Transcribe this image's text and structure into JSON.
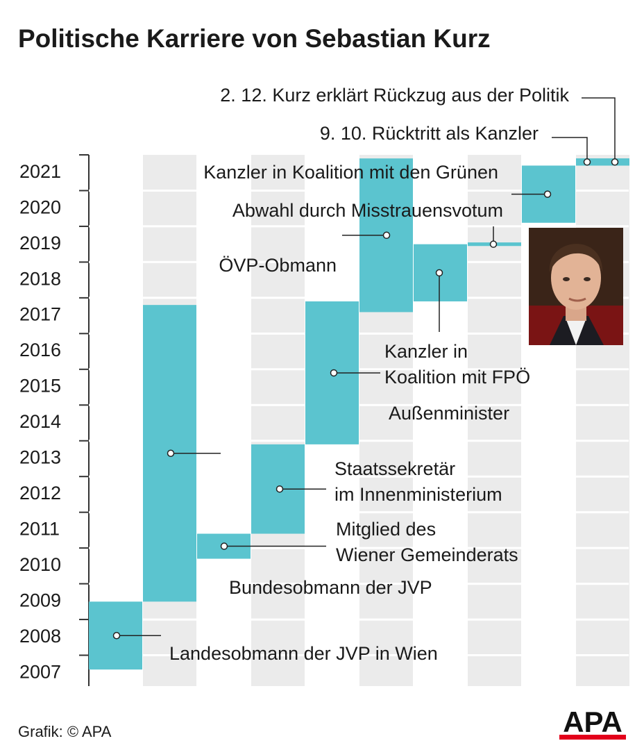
{
  "chart_data": {
    "type": "timeline",
    "title": "Politische Karriere von Sebastian Kurz",
    "source": "Grafik: © APA",
    "logo": "APA",
    "color": "#5bc4cf",
    "ylim": [
      2007,
      2022
    ],
    "yticks": [
      2007,
      2008,
      2009,
      2010,
      2011,
      2012,
      2013,
      2014,
      2015,
      2016,
      2017,
      2018,
      2019,
      2020,
      2021
    ],
    "items": [
      {
        "label": [
          "Landesobmann der JVP in Wien"
        ],
        "start": 2007.6,
        "end": 2009.5
      },
      {
        "label": [
          "Bundesobmann der JVP"
        ],
        "start": 2009.5,
        "end": 2017.8
      },
      {
        "label": [
          "Mitglied des",
          "Wiener Gemeinderats"
        ],
        "start": 2010.7,
        "end": 2011.4
      },
      {
        "label": [
          "Staatssekretär",
          "im Innenministerium"
        ],
        "start": 2011.4,
        "end": 2013.9
      },
      {
        "label": [
          "Außenminister"
        ],
        "start": 2013.9,
        "end": 2017.9
      },
      {
        "label": [
          "ÖVP-Obmann"
        ],
        "start": 2017.6,
        "end": 2021.9
      },
      {
        "label": [
          "Kanzler in",
          "Koalition mit FPÖ"
        ],
        "start": 2017.9,
        "end": 2019.5
      },
      {
        "label": [
          "Abwahl durch Misstrauensvotum"
        ],
        "start": 2019.45,
        "end": 2019.55
      },
      {
        "label": [
          "Kanzler in Koalition mit den Grünen"
        ],
        "start": 2020.1,
        "end": 2021.7
      },
      {
        "label": [
          "9. 10. Rücktritt als Kanzler"
        ],
        "start": 2021.7,
        "end": 2021.9
      },
      {
        "label": [
          "2. 12. Kurz erklärt Rückzug aus der Politik"
        ],
        "start": 2021.7,
        "end": 2021.9
      }
    ]
  }
}
